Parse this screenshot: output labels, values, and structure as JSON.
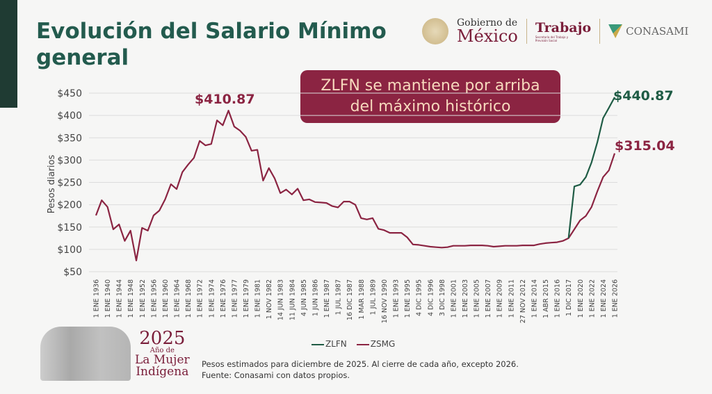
{
  "header": {
    "title": "Evolución del Salario Mínimo general"
  },
  "logos": {
    "gobierno_line1": "Gobierno de",
    "gobierno_line2": "México",
    "trabajo": "Trabajo",
    "trabajo_sub": "Secretaría del Trabajo y Previsión Social",
    "conasami": "CONASAMI"
  },
  "callout": "ZLFN se mantiene por arriba del máximo histórico",
  "badge": {
    "year": "2025",
    "line1": "Año de",
    "line2": "La Mujer",
    "line3": "Indígena"
  },
  "footnote": {
    "line1": "Pesos estimados para diciembre de 2025. Al cierre de cada año, excepto 2026.",
    "line2": "Fuente: Conasami con datos propios."
  },
  "colors": {
    "zlfn": "#1f5c45",
    "zsmg": "#8b2442",
    "title": "#235b4e"
  },
  "chart_data": {
    "type": "line",
    "title": "",
    "ylabel": "Pesos diarios",
    "xlabel": "",
    "ylim": [
      50,
      450
    ],
    "yticks": [
      "$450",
      "$400",
      "$350",
      "$300",
      "$250",
      "$200",
      "$150",
      "$100",
      "$50"
    ],
    "ytick_values": [
      450,
      400,
      350,
      300,
      250,
      200,
      150,
      100,
      50
    ],
    "grid": true,
    "legend_position": "bottom",
    "x_tick_labels": [
      "1 ENE 1936",
      "1 ENE 1940",
      "1 ENE 1944",
      "1 ENE 1948",
      "1 ENE 1952",
      "1 ENE 1956",
      "1 ENE 1960",
      "1 ENE 1964",
      "1 ENE 1968",
      "1 ENE 1972",
      "1 ENE 1974",
      "1 ENE 1976",
      "1 ENE 1977",
      "1 ENE 1979",
      "1 ENE 1981",
      "1 NOV 1982",
      "14 JUN 1983",
      "11 JUN 1984",
      "4 JUN 1985",
      "1 JUN 1986",
      "1 ENE 1987",
      "1 JUL 1987",
      "16 DIC 1987",
      "1 MAR 1988",
      "1 JUL 1989",
      "16 NOV 1990",
      "1 ENE 1993",
      "1 ENE 1995",
      "4 DIC 1995",
      "4 DIC 1996",
      "3 DIC 1998",
      "1 ENE 2001",
      "1 ENE 2003",
      "1 ENE 2005",
      "1 ENE 2007",
      "1 ENE 2009",
      "1 ENE 2011",
      "27 NOV 2012",
      "1 ENE 2014",
      "1 ABR 2015",
      "1 ENE 2016",
      "1 DIC 2017",
      "1 ENE 2020",
      "1 ENE 2022",
      "1 ENE 2024",
      "1 ENE 2026"
    ],
    "series": [
      {
        "name": "ZSMG",
        "color": "#8b2442",
        "values": [
          176,
          210,
          195,
          145,
          156,
          119,
          142,
          75,
          148,
          142,
          176,
          187,
          212,
          246,
          235,
          273,
          290,
          305,
          343,
          333,
          336,
          389,
          378,
          410.87,
          375,
          366,
          352,
          321,
          323,
          254,
          282,
          259,
          226,
          234,
          223,
          236,
          210,
          212,
          206,
          205,
          204,
          197,
          194,
          207,
          207,
          200,
          170,
          167,
          170,
          146,
          143,
          137,
          137,
          137,
          127,
          111,
          110,
          108,
          106,
          105,
          104,
          105,
          108,
          108,
          108,
          109,
          109,
          109,
          108,
          106,
          107,
          108,
          108,
          108,
          109,
          109,
          109,
          112,
          114,
          115,
          116,
          119,
          125,
          145,
          165,
          175,
          195,
          230,
          262,
          277,
          315.04
        ]
      },
      {
        "name": "ZLFN",
        "color": "#1f5c45",
        "values": [
          null,
          null,
          null,
          null,
          null,
          null,
          null,
          null,
          null,
          null,
          null,
          null,
          null,
          null,
          null,
          null,
          null,
          null,
          null,
          null,
          null,
          null,
          null,
          null,
          null,
          null,
          null,
          null,
          null,
          null,
          null,
          null,
          null,
          null,
          null,
          null,
          null,
          null,
          null,
          null,
          null,
          null,
          null,
          null,
          null,
          null,
          null,
          null,
          null,
          null,
          null,
          null,
          null,
          null,
          null,
          null,
          null,
          null,
          null,
          null,
          null,
          null,
          null,
          null,
          null,
          null,
          null,
          null,
          null,
          null,
          null,
          null,
          null,
          null,
          null,
          null,
          null,
          null,
          null,
          null,
          null,
          null,
          125,
          241,
          245,
          262,
          295,
          340,
          394,
          417,
          440.87
        ]
      }
    ],
    "annotations": [
      {
        "text": "$410.87",
        "series": "ZSMG",
        "value": 410.87
      },
      {
        "text": "$440.87",
        "series": "ZLFN",
        "value": 440.87
      },
      {
        "text": "$315.04",
        "series": "ZSMG",
        "value": 315.04
      }
    ]
  }
}
